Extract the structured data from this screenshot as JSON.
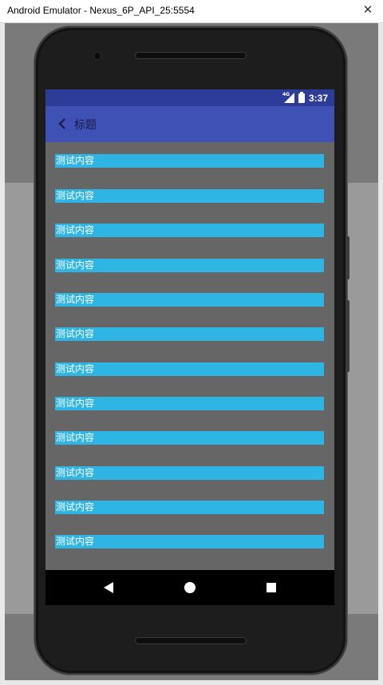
{
  "window": {
    "title": "Android Emulator - Nexus_6P_API_25:5554",
    "close_glyph": "✕"
  },
  "status_bar": {
    "network": "4G",
    "time": "3:37"
  },
  "app_bar": {
    "title": "标题"
  },
  "list": {
    "items": [
      {
        "label": "测试内容"
      },
      {
        "label": "测试内容"
      },
      {
        "label": "测试内容"
      },
      {
        "label": "测试内容"
      },
      {
        "label": "测试内容"
      },
      {
        "label": "测试内容"
      },
      {
        "label": "测试内容"
      },
      {
        "label": "测试内容"
      },
      {
        "label": "测试内容"
      },
      {
        "label": "测试内容"
      },
      {
        "label": "测试内容"
      },
      {
        "label": "测试内容"
      }
    ]
  },
  "colors": {
    "status_bar": "#2d3b99",
    "app_bar": "#3f51b5",
    "list_item": "#2fb5e3",
    "screen_bg": "#666666",
    "nav_bar": "#000000"
  },
  "icons": {
    "app_back": "chevron-left-icon",
    "nav_back": "triangle-back-icon",
    "nav_home": "circle-home-icon",
    "nav_recent": "square-recent-icon",
    "signal": "signal-icon",
    "battery": "battery-icon"
  }
}
